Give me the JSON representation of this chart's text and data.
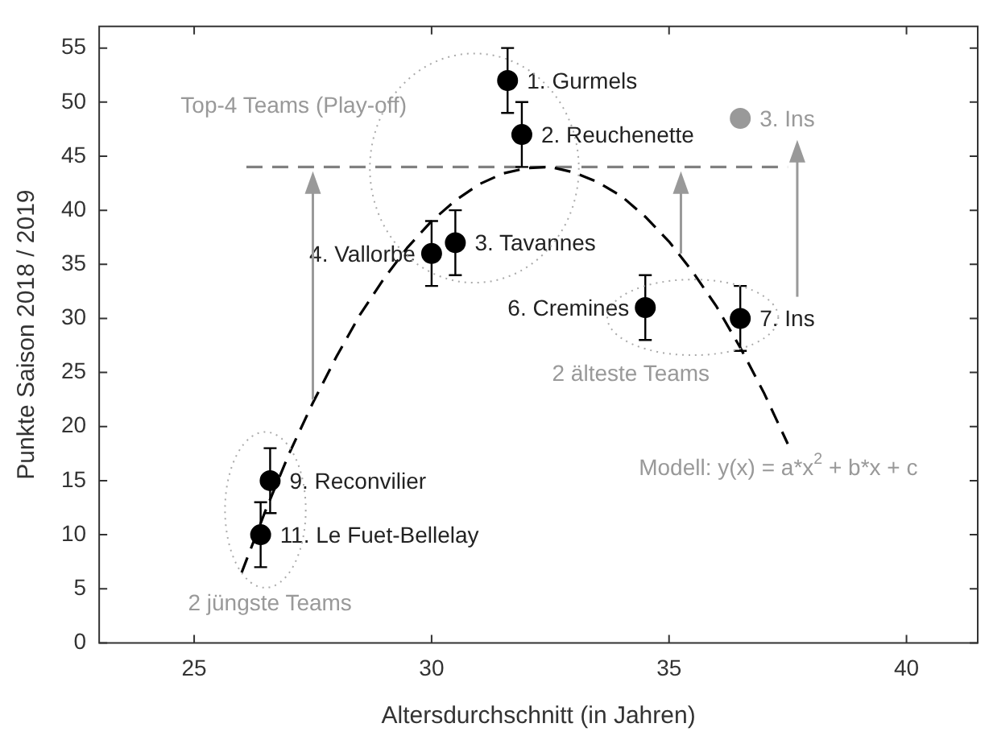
{
  "chart_data": {
    "type": "scatter",
    "xlabel": "Altersdurchschnitt (in Jahren)",
    "ylabel": "Punkte Saison 2018 / 2019",
    "xlim": [
      23,
      41.5
    ],
    "ylim": [
      0,
      57
    ],
    "xticks": [
      25,
      30,
      35,
      40
    ],
    "yticks": [
      0,
      5,
      10,
      15,
      20,
      25,
      30,
      35,
      40,
      45,
      50,
      55
    ],
    "grid": false,
    "legend": false,
    "marker": "circle",
    "series": [
      {
        "type": "line",
        "marker": "none",
        "color": "#000000",
        "line_style": "dashed",
        "x": [
          26,
          26.5,
          27,
          27.5,
          28,
          28.5,
          29,
          29.5,
          30,
          30.5,
          31,
          31.5,
          32,
          32.5,
          33,
          33.5,
          34,
          34.5,
          35,
          35.5,
          36,
          36.5,
          37,
          37.5
        ],
        "values": [
          6.5,
          12.2,
          17.5,
          22.2,
          26.5,
          30.4,
          33.7,
          36.6,
          39.0,
          40.9,
          42.4,
          43.4,
          43.9,
          44.0,
          43.5,
          42.6,
          41.3,
          39.4,
          37.1,
          34.3,
          31.1,
          27.3,
          23.1,
          18.4
        ]
      },
      {
        "type": "line",
        "marker": "none",
        "color": "#808080",
        "line_style": "dashed",
        "x": [
          26.1,
          37.5
        ],
        "values": [
          44,
          44
        ]
      },
      {
        "color": "#000000",
        "x": [
          31.6,
          31.9,
          30.0,
          30.5,
          34.5,
          36.5,
          26.6,
          26.4
        ],
        "values": [
          52,
          47,
          36,
          37,
          31,
          30,
          15,
          10
        ],
        "errors": [
          3,
          3,
          3,
          3,
          3,
          3,
          3,
          3
        ]
      },
      {
        "color": "#999999",
        "x": [
          36.5
        ],
        "values": [
          48.5
        ]
      }
    ],
    "annotations": [
      {
        "text": "1. Gurmels",
        "x": 31.6,
        "y": 52
      },
      {
        "text": "2. Reuchenette",
        "x": 31.9,
        "y": 47
      },
      {
        "text": "4. Vallorbe",
        "x": 30.0,
        "y": 36
      },
      {
        "text": "3. Tavannes",
        "x": 30.5,
        "y": 37
      },
      {
        "text": "6. Cremines",
        "x": 34.5,
        "y": 31
      },
      {
        "text": "7. Ins",
        "x": 36.5,
        "y": 30
      },
      {
        "text": "9. Reconvilier",
        "x": 26.6,
        "y": 15
      },
      {
        "text": "11. Le Fuet-Bellelay",
        "x": 26.4,
        "y": 10
      },
      {
        "text": "3. Ins",
        "x": 36.5,
        "y": 48.5
      },
      "Top-4 Teams (Play-off)",
      "2 älteste Teams",
      "2 jüngste Teams",
      "Modell: y(x) = a*x$^{2}$ + b*x + c"
    ]
  }
}
